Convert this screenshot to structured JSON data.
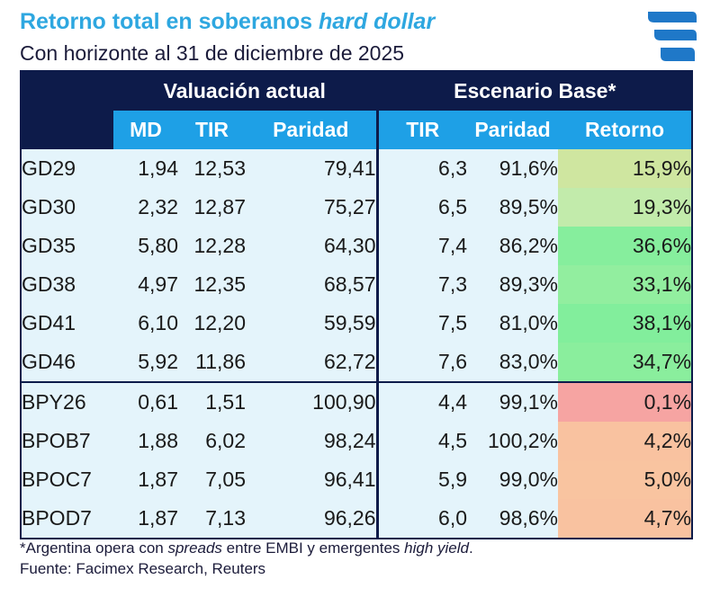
{
  "header": {
    "title_main": "Retorno total en soberanos ",
    "title_italic": "hard dollar",
    "subtitle": "Con horizonte al 31 de diciembre de 2025",
    "title_color": "#2ea7e0"
  },
  "table": {
    "group_current": "Valuación actual",
    "group_base": "Escenario Base*",
    "columns": [
      "MD",
      "TIR",
      "Paridad",
      "TIR",
      "Paridad",
      "Retorno"
    ],
    "groups": [
      [
        {
          "name": "GD29",
          "md": "1,94",
          "tir": "12,53",
          "paridad": "79,41",
          "tir_base": "6,3",
          "paridad_base": "91,6%",
          "retorno": "15,9%",
          "retorno_color": "#cfe6a0"
        },
        {
          "name": "GD30",
          "md": "2,32",
          "tir": "12,87",
          "paridad": "75,27",
          "tir_base": "6,5",
          "paridad_base": "89,5%",
          "retorno": "19,3%",
          "retorno_color": "#c2ebab"
        },
        {
          "name": "GD35",
          "md": "5,80",
          "tir": "12,28",
          "paridad": "64,30",
          "tir_base": "7,4",
          "paridad_base": "86,2%",
          "retorno": "36,6%",
          "retorno_color": "#86ee9d"
        },
        {
          "name": "GD38",
          "md": "4,97",
          "tir": "12,35",
          "paridad": "68,57",
          "tir_base": "7,3",
          "paridad_base": "89,3%",
          "retorno": "33,1%",
          "retorno_color": "#92ee9f"
        },
        {
          "name": "GD41",
          "md": "6,10",
          "tir": "12,20",
          "paridad": "59,59",
          "tir_base": "7,5",
          "paridad_base": "81,0%",
          "retorno": "38,1%",
          "retorno_color": "#82ee9c"
        },
        {
          "name": "GD46",
          "md": "5,92",
          "tir": "11,86",
          "paridad": "62,72",
          "tir_base": "7,6",
          "paridad_base": "83,0%",
          "retorno": "34,7%",
          "retorno_color": "#8aee9d"
        }
      ],
      [
        {
          "name": "BPY26",
          "md": "0,61",
          "tir": "1,51",
          "paridad": "100,90",
          "tir_base": "4,4",
          "paridad_base": "99,1%",
          "retorno": "0,1%",
          "retorno_color": "#f6a4a2"
        },
        {
          "name": "BPOB7",
          "md": "1,88",
          "tir": "6,02",
          "paridad": "98,24",
          "tir_base": "4,5",
          "paridad_base": "100,2%",
          "retorno": "4,2%",
          "retorno_color": "#f9c2a0"
        },
        {
          "name": "BPOC7",
          "md": "1,87",
          "tir": "7,05",
          "paridad": "96,41",
          "tir_base": "5,9",
          "paridad_base": "99,0%",
          "retorno": "5,0%",
          "retorno_color": "#f9c4a0"
        },
        {
          "name": "BPOD7",
          "md": "1,87",
          "tir": "7,13",
          "paridad": "96,26",
          "tir_base": "6,0",
          "paridad_base": "98,6%",
          "retorno": "4,7%",
          "retorno_color": "#f9c2a0"
        }
      ]
    ]
  },
  "footer": {
    "note_parts": [
      "*Argentina opera con ",
      "spreads",
      " entre EMBI y emergentes ",
      "high yield",
      "."
    ],
    "source": "Fuente: Facimex Research, Reuters"
  },
  "colors": {
    "navy": "#0d1b4a",
    "header_blue": "#1ea0e6",
    "cell_bg": "#e4f4fb",
    "logo": "#1f78c8"
  },
  "logo": {
    "icon": "facimex-logo-icon"
  }
}
